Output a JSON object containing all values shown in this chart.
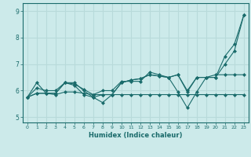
{
  "xlabel": "Humidex (Indice chaleur)",
  "xlim": [
    -0.5,
    23.5
  ],
  "ylim": [
    4.8,
    9.3
  ],
  "yticks": [
    5,
    6,
    7,
    8,
    9
  ],
  "xticks": [
    0,
    1,
    2,
    3,
    4,
    5,
    6,
    7,
    8,
    9,
    10,
    11,
    12,
    13,
    14,
    15,
    16,
    17,
    18,
    19,
    20,
    21,
    22,
    23
  ],
  "bg_color": "#cceaea",
  "line_color": "#1a6b6b",
  "grid_color": "#b8dada",
  "lines": [
    [
      5.75,
      6.3,
      5.9,
      5.9,
      6.3,
      6.3,
      6.0,
      5.75,
      5.85,
      5.85,
      6.3,
      6.4,
      6.45,
      6.6,
      6.55,
      6.5,
      6.6,
      5.95,
      6.5,
      6.5,
      6.5,
      7.3,
      7.75,
      8.85
    ],
    [
      5.75,
      5.9,
      5.9,
      5.9,
      6.3,
      6.2,
      5.85,
      5.75,
      5.55,
      5.85,
      6.3,
      6.4,
      6.45,
      6.6,
      6.55,
      6.5,
      5.95,
      5.35,
      5.95,
      6.5,
      6.6,
      6.6,
      6.6,
      6.6
    ],
    [
      5.75,
      6.1,
      6.0,
      6.0,
      6.3,
      6.25,
      6.05,
      5.85,
      6.0,
      6.0,
      6.35,
      6.35,
      6.35,
      6.7,
      6.6,
      6.5,
      6.6,
      6.0,
      6.5,
      6.5,
      6.5,
      7.0,
      7.5,
      8.85
    ],
    [
      5.75,
      5.9,
      5.9,
      5.85,
      5.95,
      5.95,
      5.9,
      5.85,
      5.85,
      5.85,
      5.85,
      5.85,
      5.85,
      5.85,
      5.85,
      5.85,
      5.85,
      5.85,
      5.85,
      5.85,
      5.85,
      5.85,
      5.85,
      5.85
    ]
  ]
}
